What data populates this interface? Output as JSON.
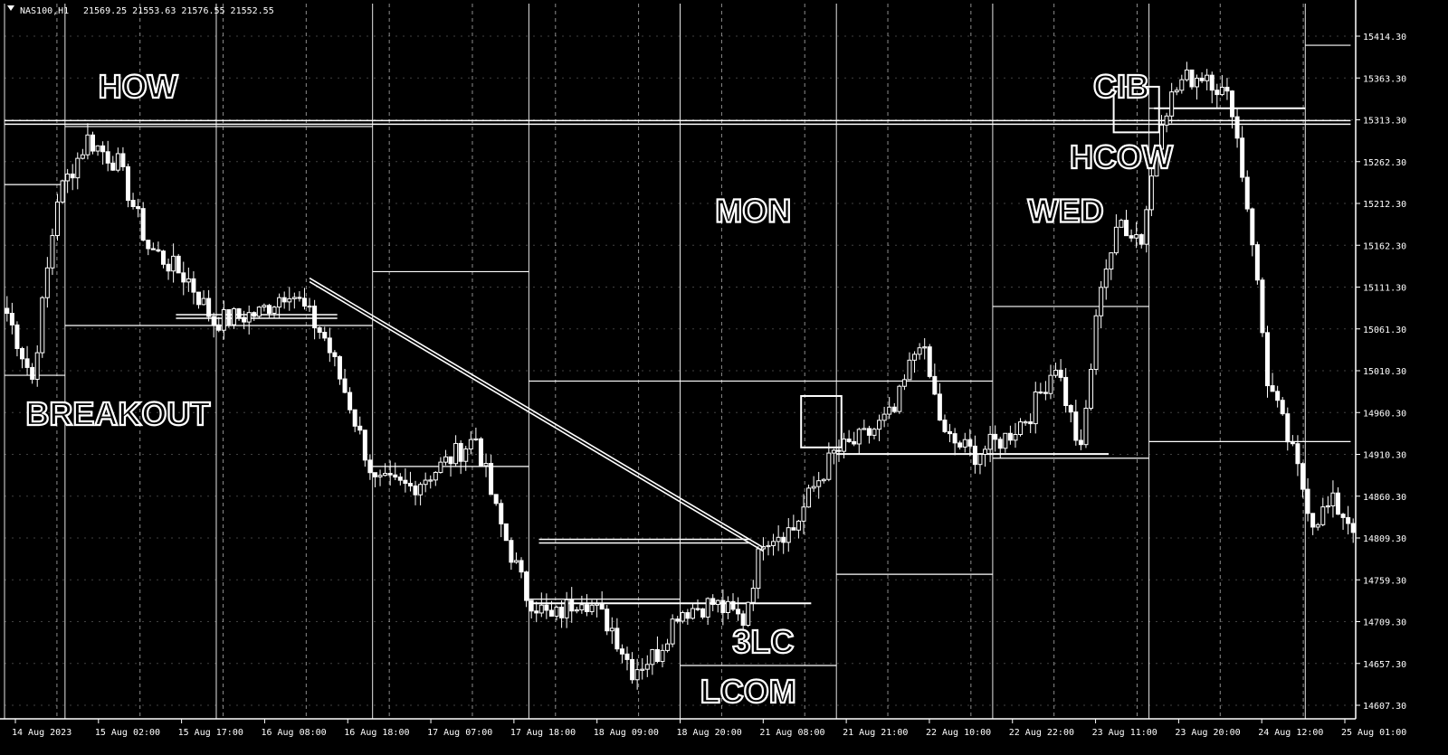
{
  "header": {
    "symbol": "NAS100,H1",
    "ohlc": "21569.25 21553.63 21576.55 21552.55"
  },
  "colors": {
    "background": "#000000",
    "foreground": "#ffffff"
  },
  "chart_data": {
    "type": "candlestick",
    "title": "",
    "xlabel": "",
    "ylabel": "",
    "grid": true,
    "ylim": [
      14637,
      15444
    ],
    "x_ticks": [
      "14 Aug 2023",
      "15 Aug 02:00",
      "15 Aug 17:00",
      "16 Aug 08:00",
      "16 Aug 18:00",
      "17 Aug 07:00",
      "17 Aug 18:00",
      "18 Aug 09:00",
      "18 Aug 20:00",
      "21 Aug 08:00",
      "21 Aug 21:00",
      "22 Aug 10:00",
      "22 Aug 22:00",
      "23 Aug 11:00",
      "23 Aug 20:00",
      "24 Aug 12:00",
      "25 Aug 01:00"
    ],
    "y_ticks": [
      "15414.30",
      "15363.30",
      "15313.30",
      "15262.30",
      "15212.30",
      "15162.30",
      "15111.30",
      "15061.30",
      "15010.30",
      "14960.30",
      "14910.30",
      "14860.30",
      "14809.30",
      "14759.30",
      "14709.30",
      "14657.30",
      "14607.30"
    ],
    "annotations": [
      {
        "id": "how",
        "text": "HOW",
        "bar": 26,
        "price": 15370
      },
      {
        "id": "cib",
        "text": "CIB",
        "bar": 221,
        "price": 15370
      },
      {
        "id": "hcow",
        "text": "HCOW",
        "bar": 221,
        "price": 15285
      },
      {
        "id": "mon",
        "text": "MON",
        "bar": 148,
        "price": 15220
      },
      {
        "id": "wed",
        "text": "WED",
        "bar": 210,
        "price": 15220
      },
      {
        "id": "breakout",
        "text": "BREAKOUT",
        "bar": 22,
        "price": 14975
      },
      {
        "id": "3lc",
        "text": "3LC",
        "bar": 150,
        "price": 14700
      },
      {
        "id": "lcom",
        "text": "LCOM",
        "bar": 147,
        "price": 14640
      }
    ],
    "anchors": [
      {
        "bar": 0,
        "price": 15110
      },
      {
        "bar": 5,
        "price": 15030
      },
      {
        "bar": 10,
        "price": 15250
      },
      {
        "bar": 16,
        "price": 15320
      },
      {
        "bar": 22,
        "price": 15290
      },
      {
        "bar": 28,
        "price": 15190
      },
      {
        "bar": 36,
        "price": 15150
      },
      {
        "bar": 41,
        "price": 15100
      },
      {
        "bar": 50,
        "price": 15110
      },
      {
        "bar": 56,
        "price": 15140
      },
      {
        "bar": 63,
        "price": 15080
      },
      {
        "bar": 68,
        "price": 15000
      },
      {
        "bar": 73,
        "price": 14905
      },
      {
        "bar": 80,
        "price": 14900
      },
      {
        "bar": 86,
        "price": 14925
      },
      {
        "bar": 93,
        "price": 14960
      },
      {
        "bar": 97,
        "price": 14870
      },
      {
        "bar": 103,
        "price": 14770
      },
      {
        "bar": 108,
        "price": 14740
      },
      {
        "bar": 114,
        "price": 14770
      },
      {
        "bar": 120,
        "price": 14730
      },
      {
        "bar": 124,
        "price": 14680
      },
      {
        "bar": 129,
        "price": 14700
      },
      {
        "bar": 133,
        "price": 14750
      },
      {
        "bar": 140,
        "price": 14760
      },
      {
        "bar": 146,
        "price": 14740
      },
      {
        "bar": 150,
        "price": 14840
      },
      {
        "bar": 156,
        "price": 14850
      },
      {
        "bar": 160,
        "price": 14900
      },
      {
        "bar": 164,
        "price": 14940
      },
      {
        "bar": 170,
        "price": 14960
      },
      {
        "bar": 176,
        "price": 14990
      },
      {
        "bar": 181,
        "price": 15080
      },
      {
        "bar": 186,
        "price": 14960
      },
      {
        "bar": 192,
        "price": 14940
      },
      {
        "bar": 198,
        "price": 14960
      },
      {
        "bar": 203,
        "price": 14990
      },
      {
        "bar": 208,
        "price": 15050
      },
      {
        "bar": 213,
        "price": 14940
      },
      {
        "bar": 217,
        "price": 15150
      },
      {
        "bar": 221,
        "price": 15220
      },
      {
        "bar": 225,
        "price": 15200
      },
      {
        "bar": 229,
        "price": 15350
      },
      {
        "bar": 233,
        "price": 15390
      },
      {
        "bar": 238,
        "price": 15400
      },
      {
        "bar": 243,
        "price": 15360
      },
      {
        "bar": 247,
        "price": 15200
      },
      {
        "bar": 250,
        "price": 15030
      },
      {
        "bar": 255,
        "price": 14940
      },
      {
        "bar": 259,
        "price": 14860
      },
      {
        "bar": 263,
        "price": 14880
      },
      {
        "bar": 267,
        "price": 14855
      }
    ],
    "levels": [
      {
        "name": "weekly-high",
        "price": 15340,
        "from_bar": 0,
        "to_bar": 267,
        "style": "double"
      },
      {
        "name": "breakout-level",
        "price": 15106,
        "from_bar": 34,
        "to_bar": 66,
        "style": "double"
      },
      {
        "name": "range-low",
        "price": 14835,
        "from_bar": 106,
        "to_bar": 148,
        "style": "double"
      },
      {
        "name": "lcom-level",
        "price": 14760,
        "from_bar": 104,
        "to_bar": 160,
        "style": "solid"
      },
      {
        "name": "mon-level",
        "price": 14940,
        "from_bar": 165,
        "to_bar": 219,
        "style": "solid"
      },
      {
        "name": "cib-level",
        "price": 15357,
        "from_bar": 228,
        "to_bar": 258,
        "style": "solid"
      }
    ],
    "trendline": {
      "from": {
        "bar": 60,
        "price": 15150
      },
      "to": {
        "bar": 150,
        "price": 14825
      }
    },
    "boxes": [
      {
        "name": "mon-box",
        "bar_start": 158,
        "bar_end": 166,
        "price_low": 14948,
        "price_high": 15010
      },
      {
        "name": "cib-box",
        "bar_start": 220,
        "bar_end": 229,
        "price_low": 15328,
        "price_high": 15383
      }
    ],
    "session_levels": [
      {
        "from_bar": 0,
        "to_bar": 12,
        "high": 15265,
        "low": 15035
      },
      {
        "from_bar": 12,
        "to_bar": 42,
        "high": 15335,
        "low": 15095
      },
      {
        "from_bar": 42,
        "to_bar": 73,
        "high": 15335,
        "low": 15095
      },
      {
        "from_bar": 73,
        "to_bar": 104,
        "high": 15160,
        "low": 14925
      },
      {
        "from_bar": 104,
        "to_bar": 134,
        "high": 15028,
        "low": 14765
      },
      {
        "from_bar": 134,
        "to_bar": 165,
        "high": 15028,
        "low": 14685
      },
      {
        "from_bar": 165,
        "to_bar": 196,
        "high": 15028,
        "low": 14795
      },
      {
        "from_bar": 196,
        "to_bar": 227,
        "high": 15118,
        "low": 14935
      },
      {
        "from_bar": 227,
        "to_bar": 258,
        "high": 15357,
        "low": 14955
      },
      {
        "from_bar": 258,
        "to_bar": 267,
        "high": 15433,
        "low": 14955
      }
    ]
  }
}
